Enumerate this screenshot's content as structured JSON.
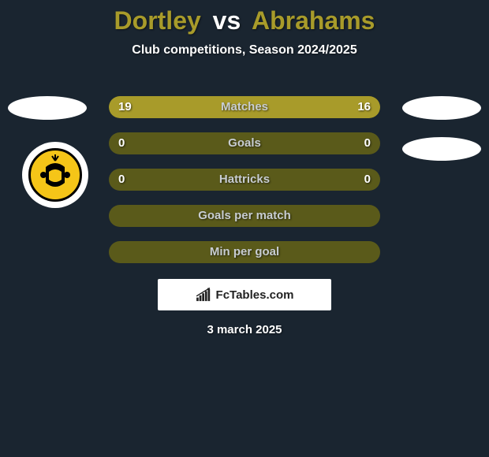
{
  "title": {
    "player1": "Dortley",
    "vs": "vs",
    "player2": "Abrahams",
    "player1_color": "#a89b2a",
    "vs_color": "#ffffff",
    "player2_color": "#a89b2a"
  },
  "subtitle": "Club competitions, Season 2024/2025",
  "club_logo": {
    "name": "kaizer-chiefs-logo",
    "text": ""
  },
  "stats": {
    "bar_left_color": "#a89b2a",
    "bar_right_color": "#a89b2a",
    "bar_bg_color": "#5a5a1a",
    "rows": [
      {
        "label": "Matches",
        "left": "19",
        "right": "16",
        "left_pct": 54,
        "right_pct": 46
      },
      {
        "label": "Goals",
        "left": "0",
        "right": "0",
        "left_pct": 0,
        "right_pct": 0
      },
      {
        "label": "Hattricks",
        "left": "0",
        "right": "0",
        "left_pct": 0,
        "right_pct": 0
      },
      {
        "label": "Goals per match",
        "left": "",
        "right": "",
        "left_pct": 0,
        "right_pct": 0
      },
      {
        "label": "Min per goal",
        "left": "",
        "right": "",
        "left_pct": 0,
        "right_pct": 0
      }
    ]
  },
  "branding": "FcTables.com",
  "date": "3 march 2025",
  "colors": {
    "background": "#1a2530",
    "avatar_bg": "#ffffff"
  }
}
